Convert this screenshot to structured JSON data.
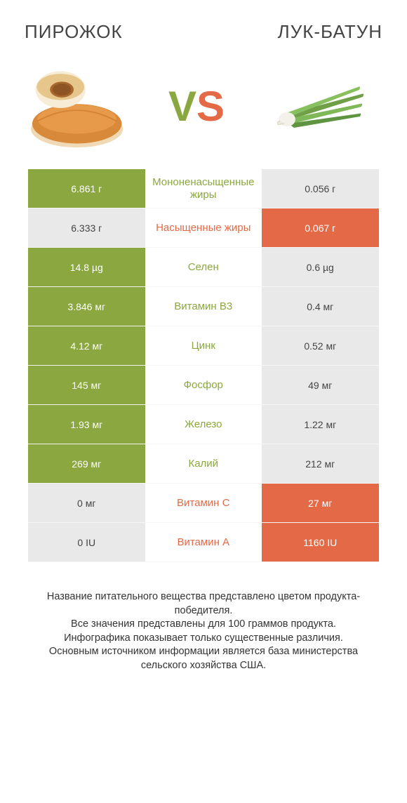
{
  "header": {
    "left": "ПИРОЖОК",
    "right": "ЛУК-БАТУН"
  },
  "vs": {
    "v": "V",
    "s": "S"
  },
  "colors": {
    "left_win": "#8aa83f",
    "right_win": "#e46a47",
    "lose": "#e9e9e9",
    "text_dark": "#444444",
    "green_text": "#8aa83f",
    "orange_text": "#e46a47"
  },
  "rows": [
    {
      "left": "6.861 г",
      "mid": "Мононенасыщенные жиры",
      "right": "0.056 г",
      "winner": "left"
    },
    {
      "left": "6.333 г",
      "mid": "Насыщенные жиры",
      "right": "0.067 г",
      "winner": "right"
    },
    {
      "left": "14.8 µg",
      "mid": "Селен",
      "right": "0.6 µg",
      "winner": "left"
    },
    {
      "left": "3.846 мг",
      "mid": "Витамин B3",
      "right": "0.4 мг",
      "winner": "left"
    },
    {
      "left": "4.12 мг",
      "mid": "Цинк",
      "right": "0.52 мг",
      "winner": "left"
    },
    {
      "left": "145 мг",
      "mid": "Фосфор",
      "right": "49 мг",
      "winner": "left"
    },
    {
      "left": "1.93 мг",
      "mid": "Железо",
      "right": "1.22 мг",
      "winner": "left"
    },
    {
      "left": "269 мг",
      "mid": "Калий",
      "right": "212 мг",
      "winner": "left"
    },
    {
      "left": "0 мг",
      "mid": "Витамин C",
      "right": "27 мг",
      "winner": "right"
    },
    {
      "left": "0 IU",
      "mid": "Витамин A",
      "right": "1160 IU",
      "winner": "right"
    }
  ],
  "footer": [
    "Название питательного вещества представлено цветом продукта-победителя.",
    "Все значения представлены для 100 граммов продукта.",
    "Инфографика показывает только существенные различия.",
    "Основным источником информации является база министерства сельского хозяйства США."
  ]
}
